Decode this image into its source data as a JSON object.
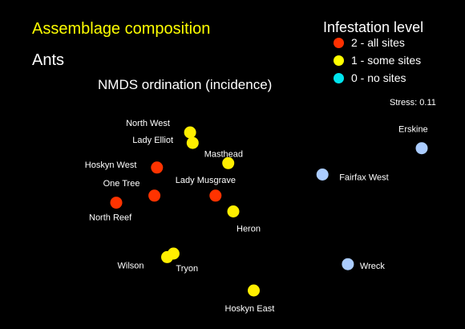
{
  "chart_data": {
    "type": "scatter",
    "title": "Assemblage composition",
    "subtitle": "Ants",
    "method": "NMDS ordination (incidence)",
    "stress_text": "Stress: 0.11",
    "xlabel": "",
    "ylabel": "",
    "grid": false,
    "legend": {
      "title": "Infestation level",
      "placement": "top-right",
      "entries": [
        {
          "label": "2 - all sites",
          "level": 2,
          "color": "#ff3000"
        },
        {
          "label": "1 - some sites",
          "level": 1,
          "color": "#ffff00"
        },
        {
          "label": "0 - no sites",
          "level": 0,
          "color": "#00e5ee"
        }
      ]
    },
    "level_colors": {
      "2": "#ff3300",
      "1": "#ffee00",
      "0": "#aaccff"
    },
    "points": [
      {
        "name": "North West",
        "level": 1,
        "x": -0.62,
        "y": 0.6
      },
      {
        "name": "Lady Elliot",
        "level": 1,
        "x": -0.6,
        "y": 0.48
      },
      {
        "name": "Masthead",
        "level": 1,
        "x": -0.32,
        "y": 0.25
      },
      {
        "name": "Hoskyn West",
        "level": 2,
        "x": -0.88,
        "y": 0.2
      },
      {
        "name": "One Tree",
        "level": 2,
        "x": -0.9,
        "y": -0.12
      },
      {
        "name": "Lady Musgrave",
        "level": 2,
        "x": -0.42,
        "y": -0.12
      },
      {
        "name": "North Reef",
        "level": 2,
        "x": -1.2,
        "y": -0.2
      },
      {
        "name": "Heron",
        "level": 1,
        "x": -0.28,
        "y": -0.3
      },
      {
        "name": "Wilson",
        "level": 1,
        "x": -0.8,
        "y": -0.82
      },
      {
        "name": "Tryon",
        "level": 1,
        "x": -0.75,
        "y": -0.78
      },
      {
        "name": "Hoskyn East",
        "level": 1,
        "x": -0.12,
        "y": -1.2
      },
      {
        "name": "Erskine",
        "level": 0,
        "x": 1.2,
        "y": 0.42
      },
      {
        "name": "Fairfax West",
        "level": 0,
        "x": 0.42,
        "y": 0.12
      },
      {
        "name": "Wreck",
        "level": 0,
        "x": 0.62,
        "y": -0.9
      }
    ]
  }
}
